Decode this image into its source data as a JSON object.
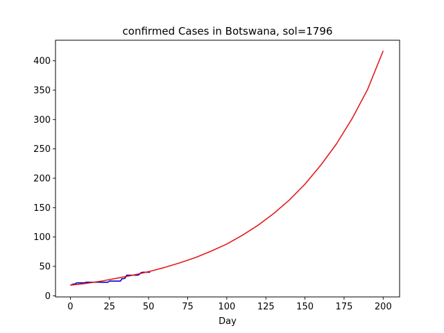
{
  "chart_data": {
    "type": "line",
    "title": "confirmed Cases in Botswana, sol=1796",
    "xlabel": "Day",
    "ylabel": "",
    "xlim": [
      -9.5,
      210.5
    ],
    "ylim": [
      -2,
      435
    ],
    "xticks": [
      0,
      25,
      50,
      75,
      100,
      125,
      150,
      175,
      200
    ],
    "yticks": [
      0,
      50,
      100,
      150,
      200,
      250,
      300,
      350,
      400
    ],
    "grid": false,
    "series": [
      {
        "color": "#0000cc",
        "x": [
          0,
          2,
          3,
          4,
          5,
          6,
          7,
          8,
          9,
          10,
          11,
          12,
          13,
          14,
          15,
          16,
          17,
          18,
          19,
          20,
          21,
          22,
          23,
          24,
          25,
          26,
          27,
          28,
          29,
          30,
          31,
          32,
          33,
          34,
          35,
          36,
          37,
          38,
          39,
          40,
          41,
          42,
          43,
          44,
          45,
          46,
          47,
          48,
          49,
          50,
          51
        ],
        "y": [
          18,
          20,
          20,
          22,
          22,
          22,
          22,
          22,
          22,
          23,
          23,
          23,
          23,
          23,
          23,
          23,
          23,
          23,
          23,
          23,
          23,
          23,
          23,
          23,
          25,
          25,
          25,
          25,
          25,
          25,
          25,
          25,
          29,
          29,
          30,
          35,
          35,
          35,
          35,
          35,
          35,
          35,
          35,
          36,
          39,
          40,
          40,
          40,
          40,
          40,
          40
        ]
      },
      {
        "color": "#e31a1c",
        "x": [
          0,
          10,
          20,
          30,
          40,
          50,
          60,
          70,
          80,
          90,
          100,
          110,
          120,
          130,
          140,
          150,
          160,
          170,
          180,
          190,
          200
        ],
        "y": [
          18,
          21,
          25,
          30,
          35,
          41,
          48,
          56,
          65,
          76,
          88,
          103,
          120,
          140,
          163,
          190,
          222,
          258,
          301,
          351,
          417
        ]
      }
    ]
  }
}
